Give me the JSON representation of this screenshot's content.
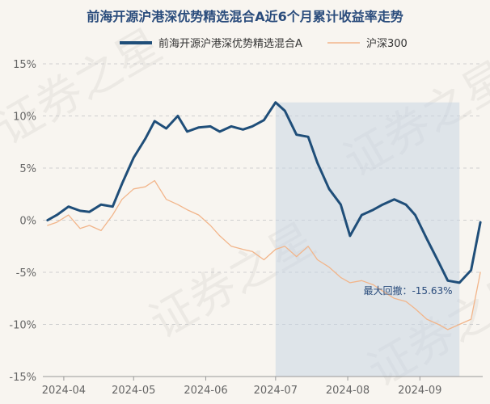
{
  "chart_data": {
    "type": "line",
    "title": "前海开源沪港深优势精选混合A近6个月累计收益率走势",
    "x_ticks": [
      "2024-04",
      "2024-05",
      "2024-06",
      "2024-07",
      "2024-08",
      "2024-09"
    ],
    "y_ticks": [
      "15%",
      "10%",
      "5%",
      "0%",
      "-5%",
      "-10%",
      "-15%"
    ],
    "ylim": [
      -15,
      15
    ],
    "grid": true,
    "legend_position": "top",
    "max_drawdown_label": "最大回撤：-15.63%",
    "x": [
      "2024-03-25",
      "2024-03-29",
      "2024-04-03",
      "2024-04-08",
      "2024-04-12",
      "2024-04-17",
      "2024-04-22",
      "2024-04-26",
      "2024-05-01",
      "2024-05-06",
      "2024-05-10",
      "2024-05-15",
      "2024-05-20",
      "2024-05-24",
      "2024-05-29",
      "2024-06-03",
      "2024-06-07",
      "2024-06-12",
      "2024-06-17",
      "2024-06-21",
      "2024-06-26",
      "2024-07-01",
      "2024-07-05",
      "2024-07-10",
      "2024-07-15",
      "2024-07-19",
      "2024-07-24",
      "2024-07-29",
      "2024-08-02",
      "2024-08-07",
      "2024-08-12",
      "2024-08-16",
      "2024-08-21",
      "2024-08-26",
      "2024-08-30",
      "2024-09-04",
      "2024-09-09",
      "2024-09-13",
      "2024-09-18",
      "2024-09-23",
      "2024-09-27"
    ],
    "series": [
      {
        "name": "前海开源沪港深优势精选混合A",
        "color": "#1f4e79",
        "values": [
          0,
          0.5,
          1.3,
          0.9,
          0.8,
          1.5,
          1.3,
          3.5,
          6.0,
          7.8,
          9.5,
          8.8,
          10.0,
          8.5,
          8.9,
          9.0,
          8.5,
          9.0,
          8.7,
          9.0,
          9.6,
          11.3,
          10.5,
          8.2,
          8.0,
          5.5,
          3.0,
          1.5,
          -1.5,
          0.5,
          1.0,
          1.5,
          2.0,
          1.5,
          0.5,
          -1.8,
          -4.0,
          -5.8,
          -6.0,
          -4.8,
          -0.2
        ]
      },
      {
        "name": "沪深300",
        "color": "#f2b58a",
        "values": [
          -0.5,
          -0.2,
          0.5,
          -0.8,
          -0.5,
          -1.0,
          0.5,
          2.0,
          3.0,
          3.2,
          3.8,
          2.0,
          1.5,
          1.0,
          0.5,
          -0.5,
          -1.5,
          -2.5,
          -2.8,
          -3.0,
          -3.8,
          -2.8,
          -2.5,
          -3.5,
          -2.5,
          -3.8,
          -4.5,
          -5.5,
          -6.0,
          -5.8,
          -6.2,
          -6.8,
          -7.5,
          -7.8,
          -8.5,
          -9.5,
          -10.0,
          -10.5,
          -10.0,
          -9.5,
          -5.0
        ]
      }
    ]
  },
  "watermark": "证券之星"
}
